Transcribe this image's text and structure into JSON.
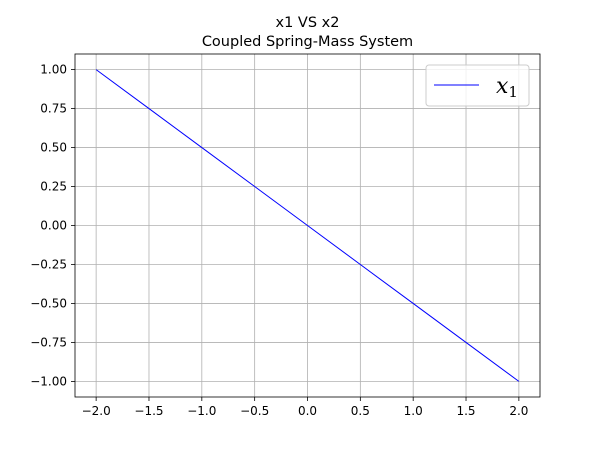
{
  "chart_data": {
    "type": "line",
    "title": "x1 VS x2",
    "subtitle": "Coupled Spring-Mass System",
    "xlabel": "",
    "ylabel": "",
    "xlim": [
      -2.2,
      2.2
    ],
    "ylim": [
      -1.1,
      1.1
    ],
    "xticks": [
      -2.0,
      -1.5,
      -1.0,
      -0.5,
      0.0,
      0.5,
      1.0,
      1.5,
      2.0
    ],
    "xtick_labels": [
      "−2.0",
      "−1.5",
      "−1.0",
      "−0.5",
      "0.0",
      "0.5",
      "1.0",
      "1.5",
      "2.0"
    ],
    "yticks": [
      1.0,
      0.75,
      0.5,
      0.25,
      0.0,
      -0.25,
      -0.5,
      -0.75,
      -1.0
    ],
    "ytick_labels": [
      "1.00",
      "0.75",
      "0.50",
      "0.25",
      "0.00",
      "−0.25",
      "−0.50",
      "−0.75",
      "−1.00"
    ],
    "grid": true,
    "legend_position": "top-right",
    "series": [
      {
        "name": "x",
        "name_subscript": "1",
        "color": "#0000ff",
        "x": [
          -2.0,
          -1.5,
          -1.0,
          -0.5,
          0.0,
          0.5,
          1.0,
          1.5,
          2.0
        ],
        "y": [
          1.0,
          0.75,
          0.5,
          0.25,
          0.0,
          -0.25,
          -0.5,
          -0.75,
          -1.0
        ]
      }
    ]
  }
}
